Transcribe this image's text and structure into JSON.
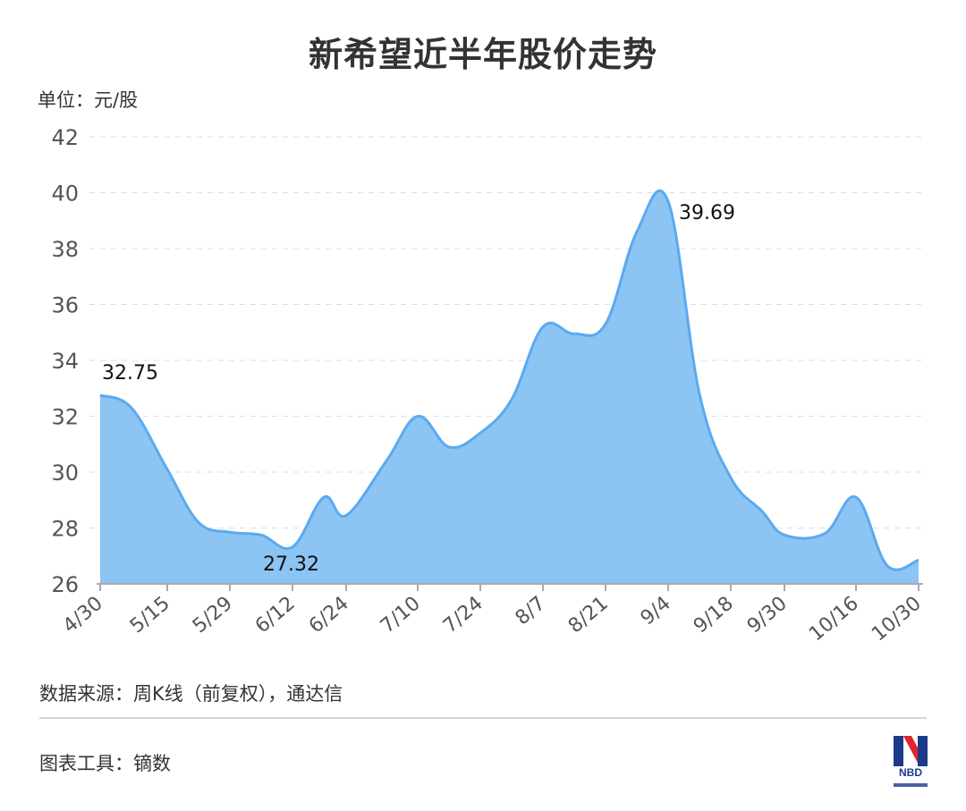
{
  "title": "新希望近半年股价走势",
  "unit_label": "单位：元/股",
  "footer": {
    "source": "数据来源：周K线（前复权），通达信",
    "tool": "图表工具：镝数"
  },
  "logo": {
    "text": "NBD"
  },
  "colors": {
    "area_fill": "#8cc4f4",
    "line": "#5aaaf0",
    "grid": "#dddddd",
    "axis": "#aaaaaa",
    "text": "#333333"
  },
  "chart_data": {
    "type": "area",
    "xlabel": "",
    "ylabel": "",
    "ylim": [
      26,
      42
    ],
    "yticks": [
      26,
      28,
      30,
      32,
      34,
      36,
      38,
      40,
      42
    ],
    "grid": true,
    "x_tick_labels": [
      "4/30",
      "5/15",
      "5/29",
      "6/12",
      "6/24",
      "7/10",
      "7/24",
      "8/7",
      "8/21",
      "9/4",
      "9/18",
      "9/30",
      "10/16",
      "10/30"
    ],
    "points": [
      {
        "x": "4/30",
        "y": 32.75
      },
      {
        "x": "5/7",
        "y": 32.3
      },
      {
        "x": "5/15",
        "y": 30.1
      },
      {
        "x": "5/22",
        "y": 28.2
      },
      {
        "x": "5/29",
        "y": 27.85
      },
      {
        "x": "6/5",
        "y": 27.75
      },
      {
        "x": "6/12",
        "y": 27.32
      },
      {
        "x": "6/19",
        "y": 29.1
      },
      {
        "x": "6/24",
        "y": 28.45
      },
      {
        "x": "7/3",
        "y": 30.4
      },
      {
        "x": "7/10",
        "y": 32.0
      },
      {
        "x": "7/17",
        "y": 30.9
      },
      {
        "x": "7/24",
        "y": 31.4
      },
      {
        "x": "7/31",
        "y": 32.6
      },
      {
        "x": "8/7",
        "y": 35.2
      },
      {
        "x": "8/14",
        "y": 34.95
      },
      {
        "x": "8/21",
        "y": 35.3
      },
      {
        "x": "8/28",
        "y": 38.6
      },
      {
        "x": "9/4",
        "y": 39.69
      },
      {
        "x": "9/11",
        "y": 32.8
      },
      {
        "x": "9/18",
        "y": 29.8
      },
      {
        "x": "9/25",
        "y": 28.6
      },
      {
        "x": "9/30",
        "y": 27.75
      },
      {
        "x": "10/9",
        "y": 27.8
      },
      {
        "x": "10/16",
        "y": 29.1
      },
      {
        "x": "10/23",
        "y": 26.65
      },
      {
        "x": "10/30",
        "y": 26.85
      }
    ],
    "annotations": [
      {
        "label": "32.75",
        "point_index": 0
      },
      {
        "label": "27.32",
        "point_index": 6
      },
      {
        "label": "39.69",
        "point_index": 18
      }
    ]
  }
}
